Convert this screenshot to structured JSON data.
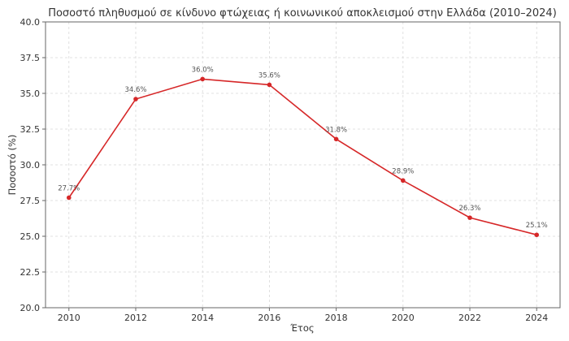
{
  "chart_data": {
    "type": "line",
    "title": "Ποσοστό πληθυσμού σε κίνδυνο φτώχειας ή κοινωνικού αποκλεισμού στην Ελλάδα (2010–2024)",
    "xlabel": "Έτος",
    "ylabel": "Ποσοστό (%)",
    "x": [
      2010,
      2012,
      2014,
      2016,
      2018,
      2020,
      2022,
      2024
    ],
    "series": [
      {
        "values": [
          27.7,
          34.6,
          36.0,
          35.6,
          31.8,
          28.9,
          26.3,
          25.1
        ],
        "labels": [
          "27.7%",
          "34.6%",
          "36.0%",
          "35.6%",
          "31.8%",
          "28.9%",
          "26.3%",
          "25.1%"
        ],
        "color": "#d62728"
      }
    ],
    "xlim": [
      2009.3,
      2024.7
    ],
    "ylim": [
      20.0,
      40.0
    ],
    "xticks": [
      "2010",
      "2012",
      "2014",
      "2016",
      "2018",
      "2020",
      "2022",
      "2024"
    ],
    "yticks": [
      "20.0",
      "22.5",
      "25.0",
      "27.5",
      "30.0",
      "32.5",
      "35.0",
      "37.5",
      "40.0"
    ],
    "grid": true
  }
}
